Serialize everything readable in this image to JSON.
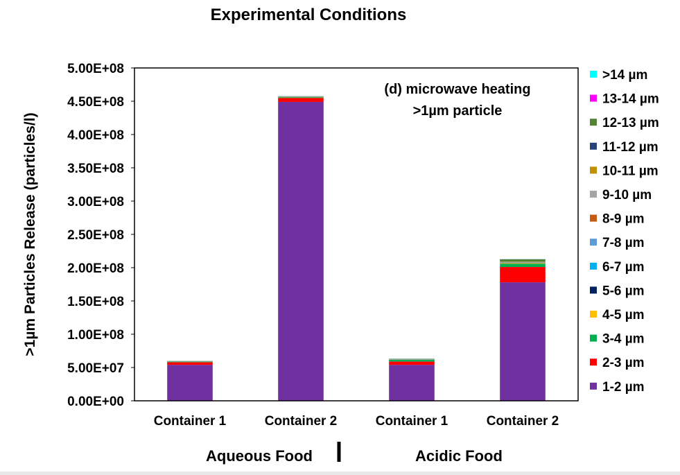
{
  "chart_data": {
    "type": "bar",
    "stacked": true,
    "title": "Experimental Conditions",
    "annotation": [
      "(d) microwave heating",
      ">1µm particle"
    ],
    "ylabel": ">1µm Particles Release (particles/l)",
    "xlabel": "",
    "ylim": [
      0,
      500000000
    ],
    "yticks": [
      "0.00E+00",
      "5.00E+07",
      "1.00E+08",
      "1.50E+08",
      "2.00E+08",
      "2.50E+08",
      "3.00E+08",
      "3.50E+08",
      "4.00E+08",
      "4.50E+08",
      "5.00E+08"
    ],
    "categories": [
      "Container 1",
      "Container 2",
      "Container 1",
      "Container 2"
    ],
    "groups": [
      {
        "label": "Aqueous Food",
        "categories": [
          0,
          1
        ]
      },
      {
        "label": "Acidic Food",
        "categories": [
          2,
          3
        ]
      }
    ],
    "legend_position": "right",
    "grid": false,
    "series": [
      {
        "name": "1-2 µm",
        "color": "#7030a0",
        "values": [
          54000000,
          449000000,
          54000000,
          178000000
        ]
      },
      {
        "name": "2-3 µm",
        "color": "#ff0000",
        "values": [
          4000000,
          6000000,
          5000000,
          23000000
        ]
      },
      {
        "name": "3-4 µm",
        "color": "#00b050",
        "values": [
          800000,
          1000000,
          2500000,
          5000000
        ]
      },
      {
        "name": "4-5 µm",
        "color": "#ffc000",
        "values": [
          100000,
          200000,
          200000,
          1000000
        ]
      },
      {
        "name": "5-6 µm",
        "color": "#002060",
        "values": [
          100000,
          100000,
          100000,
          300000
        ]
      },
      {
        "name": "6-7 µm",
        "color": "#00b0f0",
        "values": [
          100000,
          100000,
          200000,
          300000
        ]
      },
      {
        "name": "7-8 µm",
        "color": "#5b9bd5",
        "values": [
          100000,
          100000,
          100000,
          300000
        ]
      },
      {
        "name": "8-9 µm",
        "color": "#c55a11",
        "values": [
          100000,
          100000,
          100000,
          300000
        ]
      },
      {
        "name": "9-10 µm",
        "color": "#a5a5a5",
        "values": [
          100000,
          100000,
          100000,
          300000
        ]
      },
      {
        "name": "10-11 µm",
        "color": "#bf9000",
        "values": [
          100000,
          100000,
          100000,
          300000
        ]
      },
      {
        "name": "11-12 µm",
        "color": "#264478",
        "values": [
          50000,
          100000,
          100000,
          200000
        ]
      },
      {
        "name": "12-13 µm",
        "color": "#548235",
        "values": [
          300000,
          600000,
          500000,
          3500000
        ]
      },
      {
        "name": "13-14 µm",
        "color": "#ff00ff",
        "values": [
          50000,
          100000,
          100000,
          200000
        ]
      },
      {
        "name": ">14 µm",
        "color": "#00ffff",
        "values": [
          50000,
          100000,
          100000,
          200000
        ]
      }
    ]
  }
}
